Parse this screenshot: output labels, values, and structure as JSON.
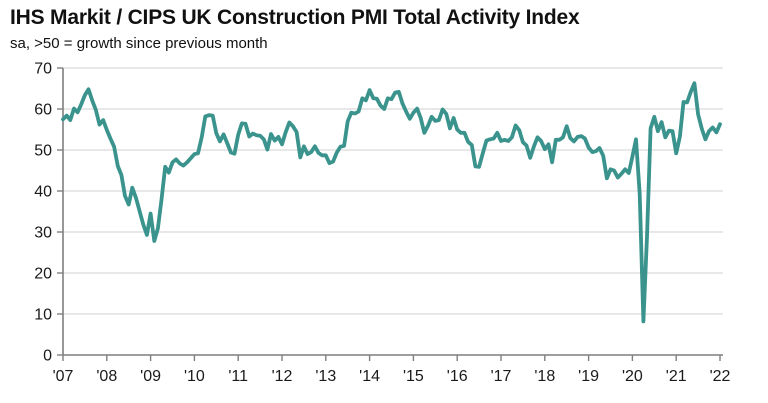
{
  "header": {
    "title": "IHS Markit / CIPS UK Construction PMI Total Activity Index",
    "subtitle": "sa, >50 = growth since previous month"
  },
  "chart_data": {
    "type": "line",
    "title": "IHS Markit / CIPS UK Construction PMI Total Activity Index",
    "subtitle": "sa, >50 = growth since previous month",
    "xlabel": "",
    "ylabel": "",
    "x_start": "2007-01",
    "x_end": "2022-01",
    "frequency": "monthly",
    "x_tick_labels": [
      "'07",
      "'08",
      "'09",
      "'10",
      "'11",
      "'12",
      "'13",
      "'14",
      "'15",
      "'16",
      "'17",
      "'18",
      "'19",
      "'20",
      "'21",
      "'22"
    ],
    "y_ticks": [
      0,
      10,
      20,
      30,
      40,
      50,
      60,
      70
    ],
    "ylim": [
      0,
      70
    ],
    "grid": "horizontal-only",
    "legend_position": "none",
    "colors": {
      "line": "#3a948d",
      "axis": "#7f7f7f",
      "gridline": "#d9d9d9",
      "label": "#1a1a1a"
    },
    "series": [
      {
        "name": "UK Construction PMI Total Activity Index",
        "values": [
          57.5,
          58.4,
          57.3,
          60.1,
          59.2,
          61.2,
          63.4,
          64.8,
          62.1,
          59.8,
          56.2,
          57.3,
          54.9,
          52.8,
          50.8,
          46.1,
          43.9,
          38.8,
          36.7,
          40.8,
          38.3,
          35.1,
          31.8,
          29.3,
          34.5,
          27.8,
          30.9,
          38.1,
          45.9,
          44.5,
          47.0,
          47.7,
          46.7,
          46.2,
          47.0,
          48.0,
          49.0,
          49.2,
          53.1,
          58.2,
          58.5,
          58.4,
          54.1,
          52.1,
          53.8,
          51.6,
          49.4,
          49.1,
          53.7,
          56.5,
          56.4,
          53.3,
          54.0,
          53.6,
          53.5,
          52.6,
          50.1,
          53.9,
          52.3,
          53.2,
          51.4,
          54.3,
          56.7,
          55.8,
          54.4,
          48.2,
          50.9,
          49.0,
          49.5,
          50.9,
          49.3,
          48.7,
          48.7,
          46.8,
          47.2,
          49.4,
          50.8,
          51.0,
          57.0,
          59.1,
          58.9,
          59.4,
          62.6,
          62.1,
          64.6,
          62.6,
          62.5,
          60.8,
          60.0,
          62.6,
          62.4,
          64.0,
          64.2,
          61.4,
          59.4,
          57.6,
          59.1,
          60.1,
          57.8,
          54.2,
          55.9,
          58.1,
          57.1,
          57.3,
          59.9,
          58.8,
          55.3,
          57.8,
          55.0,
          54.2,
          54.2,
          52.0,
          51.2,
          46.0,
          45.9,
          49.2,
          52.3,
          52.6,
          52.8,
          54.2,
          52.2,
          52.5,
          52.2,
          53.1,
          56.0,
          54.8,
          51.9,
          51.1,
          48.1,
          50.8,
          53.1,
          52.2,
          50.2,
          51.4,
          47.0,
          52.5,
          52.5,
          53.1,
          55.8,
          52.9,
          52.1,
          53.2,
          53.4,
          52.8,
          50.6,
          49.5,
          49.7,
          50.5,
          48.6,
          43.1,
          45.3,
          45.0,
          43.3,
          44.2,
          45.3,
          44.4,
          48.4,
          52.6,
          39.3,
          8.2,
          28.9,
          55.3,
          58.1,
          54.6,
          56.8,
          53.1,
          54.7,
          54.6,
          49.2,
          53.3,
          61.7,
          61.6,
          64.2,
          66.3,
          58.7,
          55.2,
          52.6,
          54.6,
          55.5,
          54.3,
          56.3
        ]
      }
    ]
  }
}
